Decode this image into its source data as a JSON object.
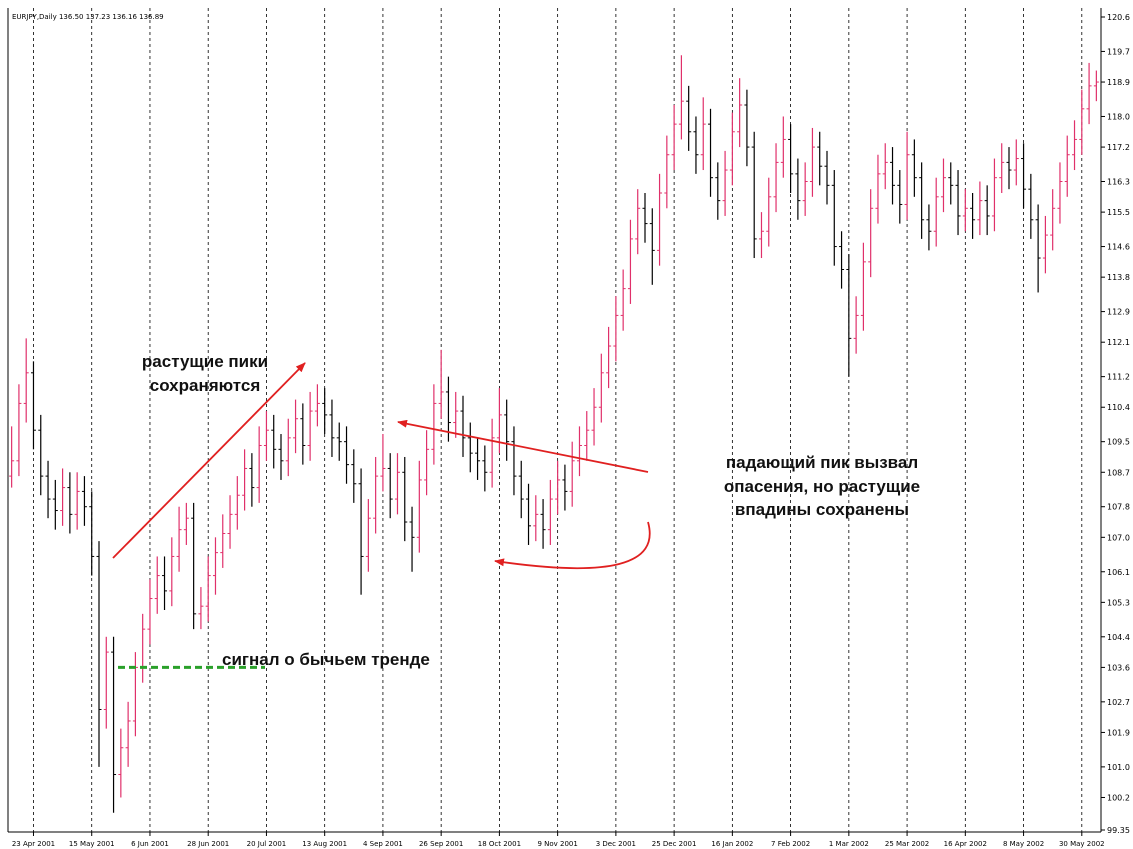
{
  "chart_data": {
    "type": "ohlc",
    "header": "EURJPY,Daily  136.50 137.23 136.16 136.89",
    "up_color": "#e0306a",
    "down_color": "#000000",
    "signal_color": "#2aa02a",
    "annotation_color": "#e02020",
    "grid": true,
    "ylim": [
      99.35,
      120.6
    ],
    "yticks": [
      120.6,
      119.7,
      118.9,
      {
        "value": 118,
        "label": "118.0"
      },
      117.2,
      116.3,
      115.5,
      114.6,
      113.8,
      112.9,
      112.1,
      111.2,
      110.4,
      109.5,
      108.7,
      107.8,
      {
        "value": 107,
        "label": "107.0"
      },
      106.1,
      105.3,
      104.4,
      103.6,
      102.7,
      101.9,
      {
        "value": 101,
        "label": "101.0"
      },
      100.2,
      99.35
    ],
    "xlim": [
      -0.5,
      149.5
    ],
    "xticks": [
      {
        "value": 3,
        "label": "23 Apr 2001"
      },
      {
        "value": 11,
        "label": "15 May 2001"
      },
      {
        "value": 19,
        "label": "6 Jun 2001"
      },
      {
        "value": 27,
        "label": "28 Jun 2001"
      },
      {
        "value": 35,
        "label": "20 Jul 2001"
      },
      {
        "value": 43,
        "label": "13 Aug 2001"
      },
      {
        "value": 51,
        "label": "4 Sep 2001"
      },
      {
        "value": 59,
        "label": "26 Sep 2001"
      },
      {
        "value": 67,
        "label": "18 Oct 2001"
      },
      {
        "value": 75,
        "label": "9 Nov 2001"
      },
      {
        "value": 83,
        "label": "3 Dec 2001"
      },
      {
        "value": 91,
        "label": "25 Dec 2001"
      },
      {
        "value": 99,
        "label": "16 Jan 2002"
      },
      {
        "value": 107,
        "label": "7 Feb 2002"
      },
      {
        "value": 115,
        "label": "1 Mar 2002"
      },
      {
        "value": 123,
        "label": "25 Mar 2002"
      },
      {
        "value": 131,
        "label": "16 Apr 2002"
      },
      {
        "value": 139,
        "label": "8 May 2002"
      },
      {
        "value": 147,
        "label": "30 May 2002"
      }
    ],
    "signal_level": 103.6,
    "annotations": [
      {
        "lines": [
          "растущие пики",
          "сохраняются"
        ]
      },
      {
        "lines": [
          "падающий пик вызвал",
          "опасения, но растущие",
          "впадины сохранены"
        ]
      },
      {
        "lines": [
          "сигнал о бычьем тренде"
        ]
      }
    ],
    "ohlc": [
      [
        108.6,
        109.9,
        108.3,
        109.0
      ],
      [
        109.0,
        111.0,
        108.6,
        110.5
      ],
      [
        110.5,
        112.2,
        110.0,
        111.3
      ],
      [
        111.3,
        111.6,
        109.3,
        109.8
      ],
      [
        109.8,
        110.2,
        108.1,
        108.6
      ],
      [
        108.6,
        109.0,
        107.5,
        108.0
      ],
      [
        108.0,
        108.5,
        107.2,
        107.7
      ],
      [
        107.7,
        108.8,
        107.3,
        108.3
      ],
      [
        108.3,
        108.7,
        107.1,
        107.6
      ],
      [
        107.6,
        108.7,
        107.2,
        108.2
      ],
      [
        108.2,
        108.6,
        107.3,
        107.8
      ],
      [
        107.8,
        108.2,
        106.0,
        106.5
      ],
      [
        106.5,
        106.9,
        101.0,
        102.5
      ],
      [
        102.5,
        104.4,
        102.0,
        104.0
      ],
      [
        104.0,
        104.4,
        99.8,
        100.8
      ],
      [
        100.8,
        102.0,
        100.2,
        101.5
      ],
      [
        101.5,
        102.7,
        101.0,
        102.2
      ],
      [
        102.2,
        104.0,
        101.8,
        103.6
      ],
      [
        103.6,
        105.0,
        103.2,
        104.6
      ],
      [
        104.6,
        105.9,
        104.2,
        105.4
      ],
      [
        105.4,
        106.5,
        105.0,
        106.0
      ],
      [
        106.0,
        106.5,
        105.1,
        105.6
      ],
      [
        105.6,
        107.0,
        105.2,
        106.5
      ],
      [
        106.5,
        107.8,
        106.1,
        107.2
      ],
      [
        107.2,
        107.9,
        106.8,
        107.5
      ],
      [
        107.5,
        107.9,
        104.6,
        105.0
      ],
      [
        105.0,
        105.7,
        104.6,
        105.2
      ],
      [
        105.2,
        106.5,
        104.8,
        106.0
      ],
      [
        106.0,
        107.0,
        105.5,
        106.6
      ],
      [
        106.6,
        107.6,
        106.2,
        107.1
      ],
      [
        107.1,
        108.1,
        106.7,
        107.6
      ],
      [
        107.6,
        108.6,
        107.2,
        108.1
      ],
      [
        108.1,
        109.3,
        107.7,
        108.8
      ],
      [
        108.8,
        109.2,
        107.8,
        108.3
      ],
      [
        108.3,
        109.9,
        107.9,
        109.4
      ],
      [
        109.4,
        110.3,
        109.0,
        109.8
      ],
      [
        109.8,
        110.2,
        108.8,
        109.3
      ],
      [
        109.3,
        109.7,
        108.5,
        109.0
      ],
      [
        109.0,
        110.1,
        108.6,
        109.6
      ],
      [
        109.6,
        110.6,
        109.2,
        110.1
      ],
      [
        110.1,
        110.5,
        108.9,
        109.4
      ],
      [
        109.4,
        110.8,
        109.0,
        110.3
      ],
      [
        110.3,
        111.0,
        109.9,
        110.5
      ],
      [
        110.5,
        110.9,
        109.7,
        110.2
      ],
      [
        110.2,
        110.6,
        109.1,
        109.6
      ],
      [
        109.6,
        110.0,
        109.0,
        109.5
      ],
      [
        109.5,
        109.9,
        108.4,
        108.9
      ],
      [
        108.9,
        109.3,
        107.9,
        108.4
      ],
      [
        108.4,
        108.8,
        105.5,
        106.5
      ],
      [
        106.5,
        108.0,
        106.1,
        107.5
      ],
      [
        107.5,
        109.1,
        107.1,
        108.6
      ],
      [
        108.6,
        109.7,
        108.2,
        108.8
      ],
      [
        108.8,
        109.2,
        107.5,
        108.0
      ],
      [
        108.0,
        109.2,
        107.6,
        108.7
      ],
      [
        108.7,
        109.1,
        106.9,
        107.4
      ],
      [
        107.4,
        107.8,
        106.1,
        107.0
      ],
      [
        107.0,
        109.0,
        106.6,
        108.5
      ],
      [
        108.5,
        109.8,
        108.1,
        109.3
      ],
      [
        109.3,
        111.0,
        108.9,
        110.5
      ],
      [
        110.5,
        111.9,
        110.1,
        110.8
      ],
      [
        110.8,
        111.2,
        109.5,
        110.0
      ],
      [
        110.0,
        110.8,
        109.6,
        110.3
      ],
      [
        110.3,
        110.7,
        109.1,
        109.6
      ],
      [
        109.6,
        110.0,
        108.7,
        109.2
      ],
      [
        109.2,
        109.6,
        108.5,
        109.0
      ],
      [
        109.0,
        109.4,
        108.2,
        108.7
      ],
      [
        108.7,
        110.1,
        108.3,
        109.6
      ],
      [
        109.6,
        110.9,
        109.2,
        110.2
      ],
      [
        110.2,
        110.6,
        109.0,
        109.5
      ],
      [
        109.5,
        109.9,
        108.1,
        108.6
      ],
      [
        108.6,
        109.0,
        107.5,
        108.0
      ],
      [
        108.0,
        108.4,
        106.8,
        107.3
      ],
      [
        107.3,
        108.1,
        106.9,
        107.6
      ],
      [
        107.6,
        108.0,
        106.7,
        107.2
      ],
      [
        107.2,
        108.5,
        106.8,
        108.0
      ],
      [
        108.0,
        109.0,
        107.6,
        108.5
      ],
      [
        108.5,
        108.9,
        107.7,
        108.2
      ],
      [
        108.2,
        109.5,
        107.8,
        109.0
      ],
      [
        109.0,
        109.9,
        108.6,
        109.4
      ],
      [
        109.4,
        110.3,
        109.0,
        109.8
      ],
      [
        109.8,
        110.9,
        109.4,
        110.4
      ],
      [
        110.4,
        111.8,
        110.0,
        111.3
      ],
      [
        111.3,
        112.5,
        110.9,
        112.0
      ],
      [
        112.0,
        113.3,
        111.6,
        112.8
      ],
      [
        112.8,
        114.0,
        112.4,
        113.5
      ],
      [
        113.5,
        115.3,
        113.1,
        114.8
      ],
      [
        114.8,
        116.1,
        114.4,
        115.6
      ],
      [
        115.6,
        116.0,
        114.7,
        115.2
      ],
      [
        115.2,
        115.6,
        113.6,
        114.5
      ],
      [
        114.5,
        116.5,
        114.1,
        116.0
      ],
      [
        116.0,
        117.5,
        115.6,
        117.0
      ],
      [
        117.0,
        118.3,
        116.6,
        117.8
      ],
      [
        117.8,
        119.6,
        117.4,
        118.4
      ],
      [
        118.4,
        118.8,
        117.1,
        117.6
      ],
      [
        117.6,
        118.0,
        116.5,
        117.0
      ],
      [
        117.0,
        118.5,
        116.6,
        117.8
      ],
      [
        117.8,
        118.2,
        115.9,
        116.4
      ],
      [
        116.4,
        116.8,
        115.3,
        115.8
      ],
      [
        115.8,
        117.1,
        115.4,
        116.6
      ],
      [
        116.6,
        118.1,
        116.2,
        117.6
      ],
      [
        117.6,
        119.0,
        117.2,
        118.3
      ],
      [
        118.3,
        118.7,
        116.7,
        117.2
      ],
      [
        117.2,
        117.6,
        114.3,
        114.8
      ],
      [
        114.8,
        115.5,
        114.3,
        115.0
      ],
      [
        115.0,
        116.4,
        114.6,
        115.9
      ],
      [
        115.9,
        117.3,
        115.5,
        116.8
      ],
      [
        116.8,
        118.0,
        116.4,
        117.4
      ],
      [
        117.4,
        117.8,
        116.0,
        116.5
      ],
      [
        116.5,
        116.9,
        115.3,
        115.8
      ],
      [
        115.8,
        116.8,
        115.4,
        116.3
      ],
      [
        116.3,
        117.7,
        115.9,
        117.2
      ],
      [
        117.2,
        117.6,
        116.2,
        116.7
      ],
      [
        116.7,
        117.1,
        115.7,
        116.2
      ],
      [
        116.2,
        116.6,
        114.1,
        114.6
      ],
      [
        114.6,
        115.0,
        113.5,
        114.0
      ],
      [
        114.0,
        114.4,
        111.2,
        112.2
      ],
      [
        112.2,
        113.3,
        111.8,
        112.8
      ],
      [
        112.8,
        114.7,
        112.4,
        114.2
      ],
      [
        114.2,
        116.1,
        113.8,
        115.6
      ],
      [
        115.6,
        117.0,
        115.2,
        116.5
      ],
      [
        116.5,
        117.3,
        116.1,
        116.8
      ],
      [
        116.8,
        117.2,
        115.7,
        116.2
      ],
      [
        116.2,
        116.6,
        115.2,
        115.7
      ],
      [
        115.7,
        117.6,
        115.3,
        117.0
      ],
      [
        117.0,
        117.4,
        115.9,
        116.4
      ],
      [
        116.4,
        116.8,
        114.8,
        115.3
      ],
      [
        115.3,
        115.7,
        114.5,
        115.0
      ],
      [
        115.0,
        116.4,
        114.6,
        115.9
      ],
      [
        115.9,
        116.9,
        115.5,
        116.4
      ],
      [
        116.4,
        116.8,
        115.7,
        116.2
      ],
      [
        116.2,
        116.6,
        114.9,
        115.4
      ],
      [
        115.4,
        116.1,
        115.0,
        115.6
      ],
      [
        115.6,
        116.0,
        114.8,
        115.3
      ],
      [
        115.3,
        116.3,
        114.9,
        115.8
      ],
      [
        115.8,
        116.2,
        114.9,
        115.4
      ],
      [
        115.4,
        116.9,
        115.0,
        116.4
      ],
      [
        116.4,
        117.3,
        116.0,
        116.8
      ],
      [
        116.8,
        117.2,
        116.1,
        116.6
      ],
      [
        116.6,
        117.4,
        116.2,
        116.9
      ],
      [
        116.9,
        117.3,
        115.6,
        116.1
      ],
      [
        116.1,
        116.5,
        114.8,
        115.3
      ],
      [
        115.3,
        115.7,
        113.4,
        114.3
      ],
      [
        114.3,
        115.4,
        113.9,
        114.9
      ],
      [
        114.9,
        116.1,
        114.5,
        115.6
      ],
      [
        115.6,
        116.8,
        115.2,
        116.3
      ],
      [
        116.3,
        117.5,
        115.9,
        117.0
      ],
      [
        117.0,
        117.9,
        116.6,
        117.4
      ],
      [
        117.4,
        118.7,
        117.0,
        118.2
      ],
      [
        118.2,
        119.4,
        117.8,
        118.8
      ],
      [
        118.8,
        119.2,
        118.4,
        118.9
      ]
    ]
  }
}
